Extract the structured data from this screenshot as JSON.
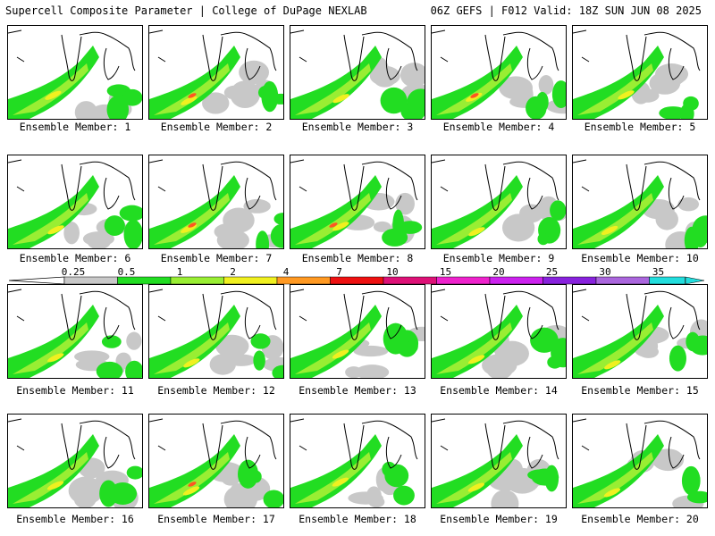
{
  "header": {
    "title_left": "Supercell Composite Parameter | College of DuPage NEXLAB",
    "title_right": "06Z GEFS | F012 Valid: 18Z SUN JUN 08 2025"
  },
  "panels": [
    {
      "label": "Ensemble Member: 1"
    },
    {
      "label": "Ensemble Member: 2"
    },
    {
      "label": "Ensemble Member: 3"
    },
    {
      "label": "Ensemble Member: 4"
    },
    {
      "label": "Ensemble Member: 5"
    },
    {
      "label": "Ensemble Member: 6"
    },
    {
      "label": "Ensemble Member: 7"
    },
    {
      "label": "Ensemble Member: 8"
    },
    {
      "label": "Ensemble Member: 9"
    },
    {
      "label": "Ensemble Member: 10"
    },
    {
      "label": "Ensemble Member: 11"
    },
    {
      "label": "Ensemble Member: 12"
    },
    {
      "label": "Ensemble Member: 13"
    },
    {
      "label": "Ensemble Member: 14"
    },
    {
      "label": "Ensemble Member: 15"
    },
    {
      "label": "Ensemble Member: 16"
    },
    {
      "label": "Ensemble Member: 17"
    },
    {
      "label": "Ensemble Member: 18"
    },
    {
      "label": "Ensemble Member: 19"
    },
    {
      "label": "Ensemble Member: 20"
    }
  ],
  "colorbar": {
    "ticks": [
      "0.25",
      "0.5",
      "1",
      "2",
      "4",
      "7",
      "10",
      "15",
      "20",
      "25",
      "30",
      "35"
    ],
    "colors": [
      "#c8c8c8",
      "#22dd22",
      "#99ee33",
      "#f0f020",
      "#ff9922",
      "#ee1111",
      "#dd1177",
      "#ee22cc",
      "#cc22ee",
      "#8822dd",
      "#aa66dd",
      "#22dddd"
    ]
  }
}
